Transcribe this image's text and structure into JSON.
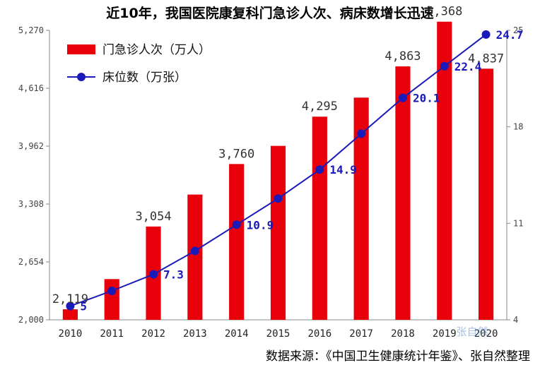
{
  "chart_data": {
    "type": "bar",
    "title": "近10年，我国医院康复科门急诊人次、病床数增长迅速",
    "source": "数据来源：《中国卫生健康统计年鉴》、张自然整理",
    "categories": [
      "2010",
      "2011",
      "2012",
      "2013",
      "2014",
      "2015",
      "2016",
      "2017",
      "2018",
      "2019",
      "2020"
    ],
    "series": [
      {
        "name": "门急诊人次（万人）",
        "type": "bar",
        "axis": "left",
        "color": "#e8000b",
        "values": [
          2119,
          2460,
          3054,
          3415,
          3760,
          3965,
          4295,
          4510,
          4863,
          5368,
          4837
        ],
        "labels": [
          "2,119",
          "",
          "3,054",
          "",
          "3,760",
          "",
          "4,295",
          "",
          "4,863",
          "5,368",
          "4,837"
        ]
      },
      {
        "name": "床位数（万张）",
        "type": "line",
        "axis": "right",
        "color": "#1a1ab8",
        "values": [
          5,
          6.1,
          7.3,
          9.0,
          10.9,
          12.8,
          14.9,
          17.5,
          20.1,
          22.4,
          24.7
        ],
        "labels": [
          "5",
          "",
          "7.3",
          "",
          "10.9",
          "",
          "14.9",
          "",
          "20.1",
          "22.4",
          "24.7"
        ]
      }
    ],
    "y_left": {
      "ylim": [
        2000,
        5270
      ],
      "ticks": [
        "2,000",
        "2,654",
        "3,308",
        "3,962",
        "4,616",
        "5,270"
      ],
      "tick_values": [
        2000,
        2654,
        3308,
        3962,
        4616,
        5270
      ]
    },
    "y_right": {
      "ylim": [
        4,
        25
      ],
      "ticks": [
        "4",
        "11",
        "18",
        "25"
      ],
      "tick_values": [
        4,
        11,
        18,
        25
      ]
    },
    "legend_position": "top-left",
    "grid": false,
    "watermark": "张自然"
  }
}
